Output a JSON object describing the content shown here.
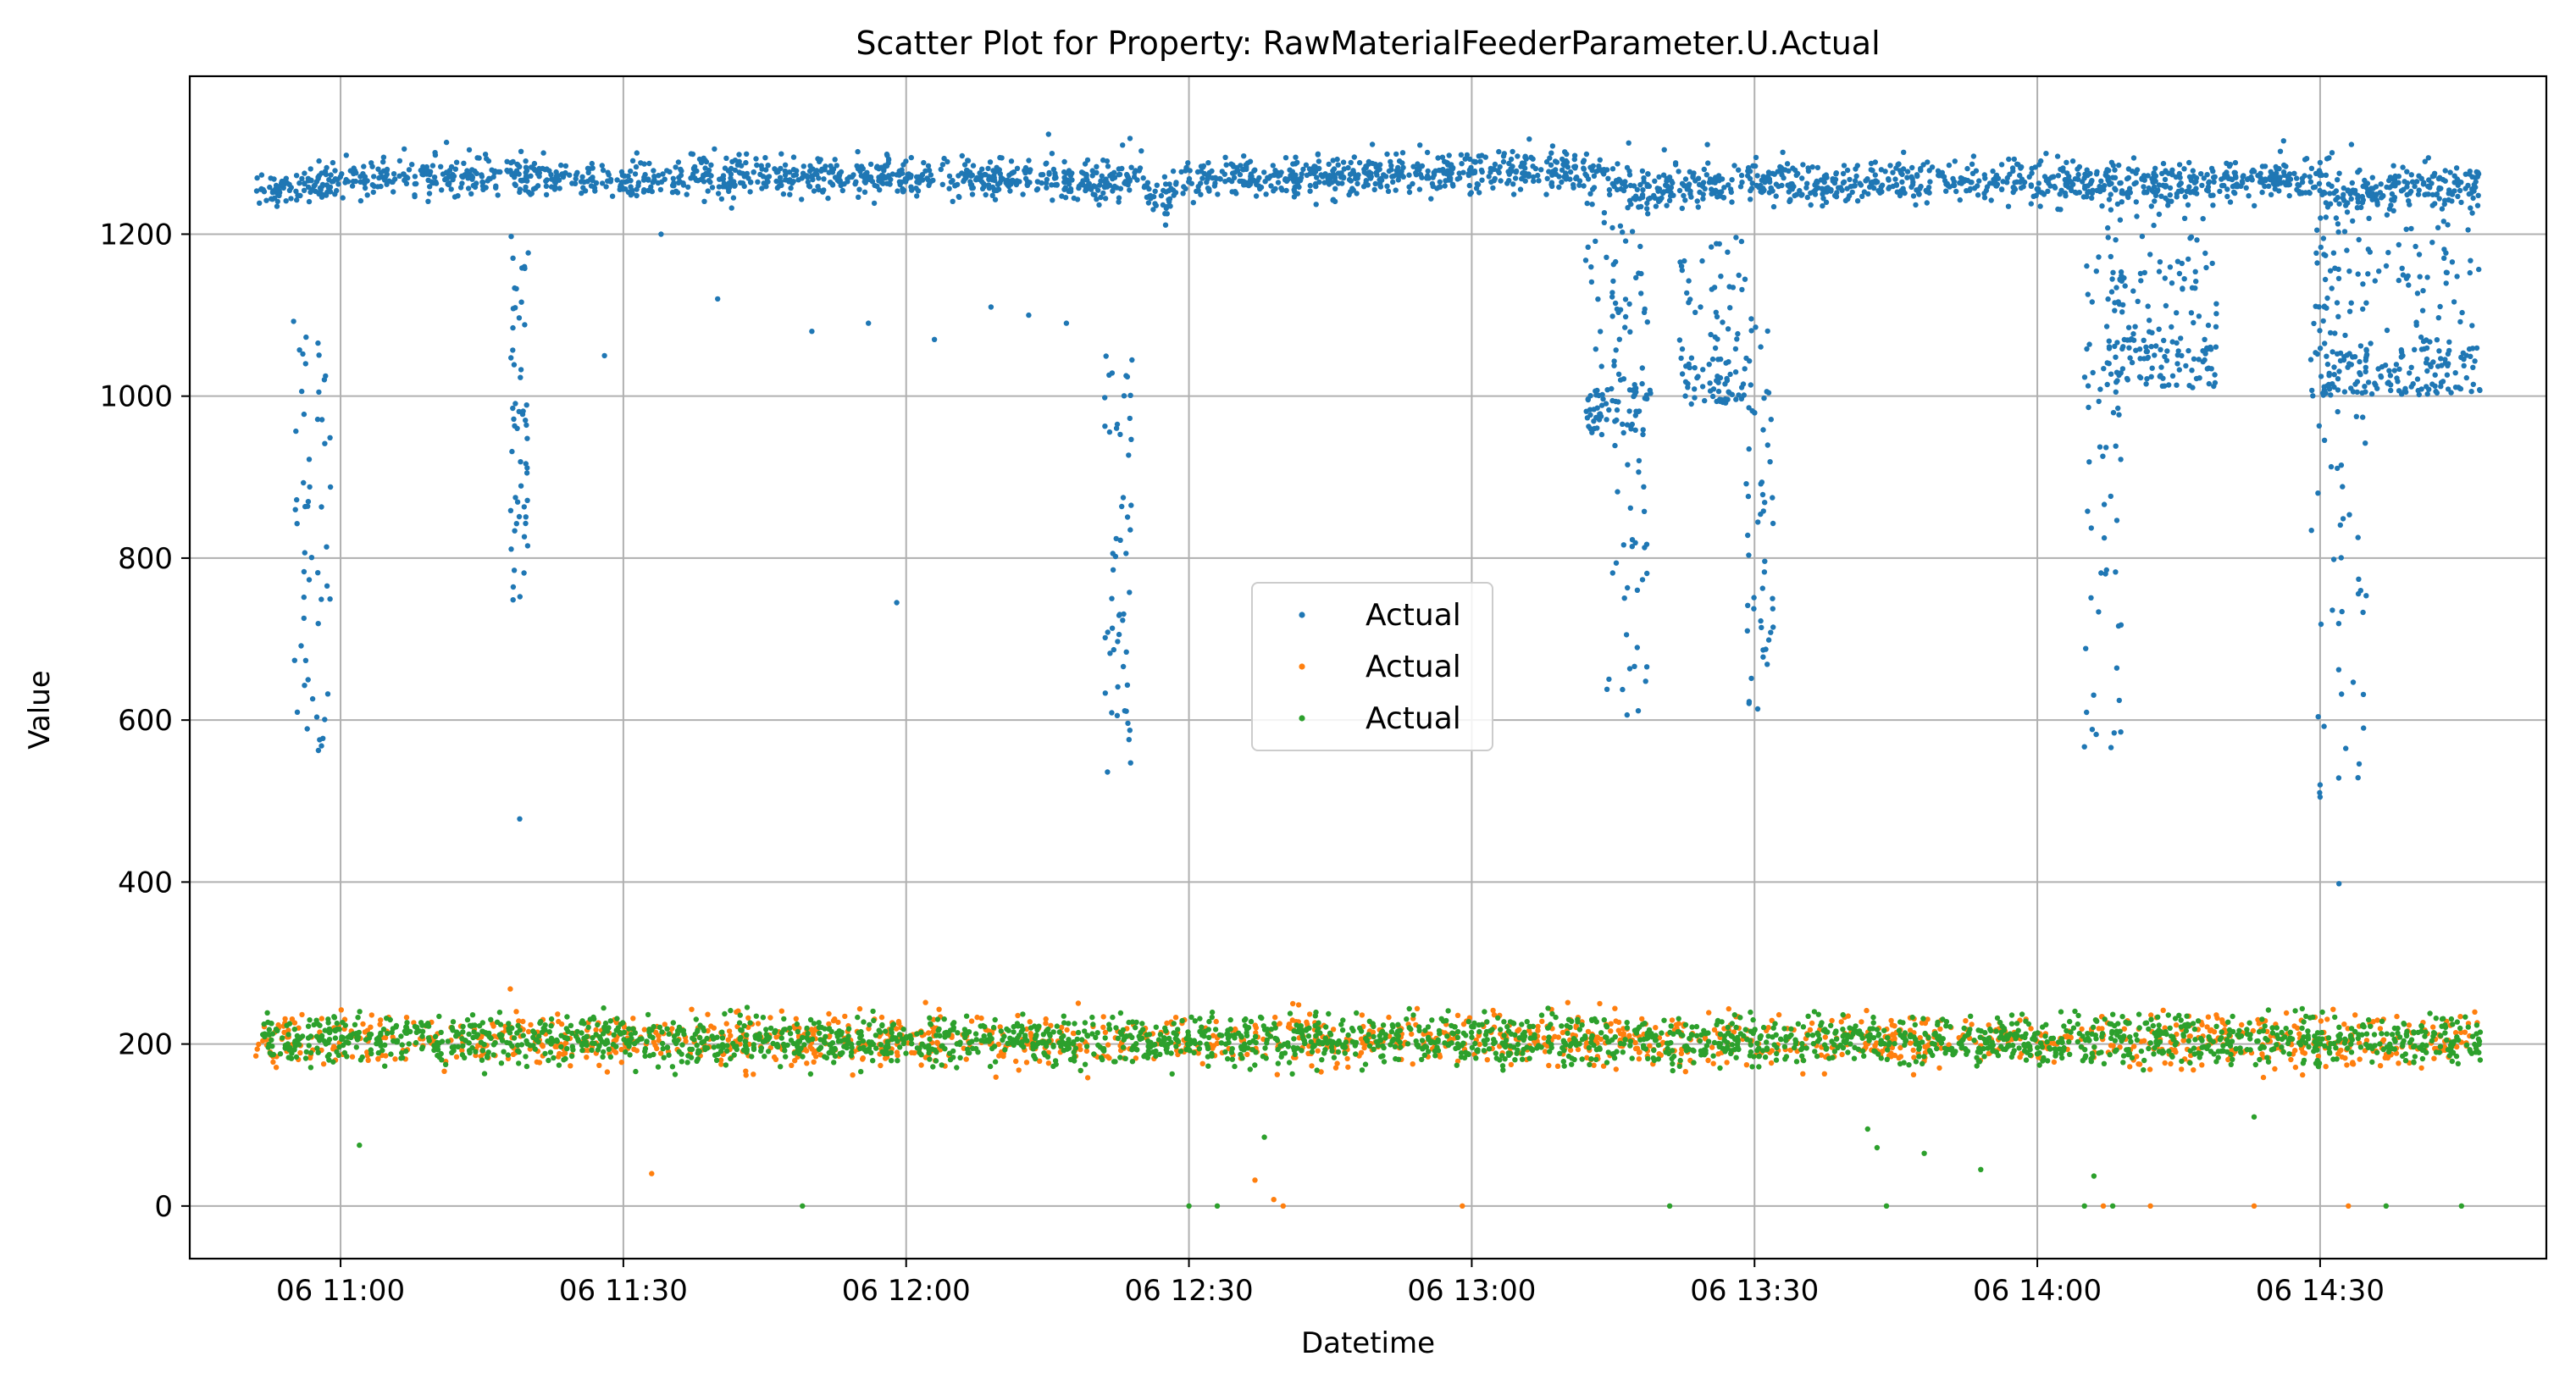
{
  "chart_data": {
    "type": "scatter",
    "title": "Scatter Plot for Property: RawMaterialFeederParameter.U.Actual",
    "xlabel": "Datetime",
    "ylabel": "Value",
    "x_start": "06 10:51",
    "x_end": "06 14:47",
    "xlim": [
      "06 10:44",
      "06 14:54"
    ],
    "ylim": [
      -65,
      1395
    ],
    "x_ticks": [
      "06 11:00",
      "06 11:30",
      "06 12:00",
      "06 12:30",
      "06 13:00",
      "06 13:30",
      "06 14:00",
      "06 14:30"
    ],
    "y_ticks": [
      0,
      200,
      400,
      600,
      800,
      1000,
      1200
    ],
    "grid": true,
    "legend_position": "center",
    "series": [
      {
        "name": "Actual",
        "color": "#1f77b4",
        "baseline": [
          [
            "06 10:51",
            1250
          ],
          [
            "06 11:00",
            1268
          ],
          [
            "06 11:15",
            1272
          ],
          [
            "06 11:30",
            1265
          ],
          [
            "06 11:45",
            1270
          ],
          [
            "06 12:00",
            1270
          ],
          [
            "06 12:15",
            1268
          ],
          [
            "06 12:25",
            1265
          ],
          [
            "06 12:27",
            1240
          ],
          [
            "06 12:30",
            1268
          ],
          [
            "06 12:45",
            1272
          ],
          [
            "06 13:00",
            1278
          ],
          [
            "06 13:10",
            1280
          ],
          [
            "06 13:15",
            1275
          ],
          [
            "06 13:17",
            1255
          ],
          [
            "06 13:30",
            1262
          ],
          [
            "06 13:45",
            1265
          ],
          [
            "06 14:00",
            1265
          ],
          [
            "06 14:15",
            1262
          ],
          [
            "06 14:25",
            1268
          ],
          [
            "06 14:30",
            1265
          ],
          [
            "06 14:32",
            1255
          ],
          [
            "06 14:47",
            1258
          ]
        ],
        "excursions": [
          {
            "x_range": [
              "06 10:55",
              "06 10:59"
            ],
            "y_range": [
              560,
              1100
            ]
          },
          {
            "x_range": [
              "06 11:18",
              "06 11:20"
            ],
            "y_range": [
              740,
              1200
            ]
          },
          {
            "x_range": [
              "06 12:21",
              "06 12:24"
            ],
            "y_range": [
              525,
              1050
            ]
          },
          {
            "x_range": [
              "06 13:14",
              "06 13:19"
            ],
            "y_range": [
              560,
              1240
            ]
          },
          {
            "x_range": [
              "06 13:29",
              "06 13:32"
            ],
            "y_range": [
              610,
              1100
            ]
          },
          {
            "x_range": [
              "06 14:05",
              "06 14:09"
            ],
            "y_range": [
              560,
              1200
            ]
          },
          {
            "x_range": [
              "06 14:29",
              "06 14:35"
            ],
            "y_range": [
              500,
              1240
            ]
          }
        ],
        "dense_bands": [
          {
            "x_range": [
              "06 13:12",
              "06 13:19"
            ],
            "y_range": [
              950,
              1240
            ]
          },
          {
            "x_range": [
              "06 13:22",
              "06 13:29"
            ],
            "y_range": [
              990,
              1200
            ]
          },
          {
            "x_range": [
              "06 14:07",
              "06 14:19"
            ],
            "y_range": [
              1010,
              1240
            ]
          },
          {
            "x_range": [
              "06 14:29",
              "06 14:47"
            ],
            "y_range": [
              1000,
              1240
            ]
          }
        ],
        "outliers": [
          [
            "06 11:19",
            478
          ],
          [
            "06 11:59",
            745
          ],
          [
            "06 14:32",
            398
          ],
          [
            "06 14:30",
            505
          ],
          [
            "06 14:30",
            520
          ],
          [
            "06 14:05",
            567
          ],
          [
            "06 11:28",
            1050
          ],
          [
            "06 11:34",
            1200
          ],
          [
            "06 11:40",
            1120
          ],
          [
            "06 11:50",
            1080
          ],
          [
            "06 11:56",
            1090
          ],
          [
            "06 12:03",
            1070
          ],
          [
            "06 12:09",
            1110
          ],
          [
            "06 12:13",
            1100
          ],
          [
            "06 12:17",
            1090
          ]
        ]
      },
      {
        "name": "Actual",
        "color": "#ff7f0e",
        "center": 205,
        "spread": [
          160,
          245
        ],
        "x_range": [
          "06 10:51",
          "06 14:47"
        ],
        "outliers": [
          [
            "06 11:18",
            268
          ],
          [
            "06 11:33",
            40
          ],
          [
            "06 12:37",
            32
          ],
          [
            "06 12:39",
            8
          ],
          [
            "06 12:40",
            0
          ],
          [
            "06 12:59",
            0
          ],
          [
            "06 14:07",
            0
          ],
          [
            "06 14:12",
            0
          ],
          [
            "06 14:23",
            0
          ],
          [
            "06 14:33",
            0
          ]
        ]
      },
      {
        "name": "Actual",
        "color": "#2ca02c",
        "center": 205,
        "spread": [
          165,
          240
        ],
        "x_range": [
          "06 10:51",
          "06 14:47"
        ],
        "outliers": [
          [
            "06 11:02",
            75
          ],
          [
            "06 11:49",
            0
          ],
          [
            "06 12:30",
            0
          ],
          [
            "06 12:33",
            0
          ],
          [
            "06 12:38",
            85
          ],
          [
            "06 13:21",
            0
          ],
          [
            "06 13:42",
            95
          ],
          [
            "06 13:43",
            72
          ],
          [
            "06 13:44",
            0
          ],
          [
            "06 13:48",
            65
          ],
          [
            "06 13:54",
            45
          ],
          [
            "06 14:05",
            0
          ],
          [
            "06 14:06",
            37
          ],
          [
            "06 14:08",
            0
          ],
          [
            "06 14:23",
            110
          ],
          [
            "06 14:37",
            0
          ],
          [
            "06 14:45",
            0
          ]
        ]
      }
    ]
  }
}
